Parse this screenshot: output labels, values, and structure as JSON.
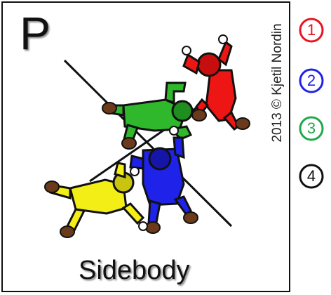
{
  "card": {
    "formation_letter": "P",
    "formation_name": "Sidebody",
    "credit": "2013 © Kjetil Nordin"
  },
  "legend": [
    {
      "number": "1",
      "color": "#e8141f"
    },
    {
      "number": "2",
      "color": "#1f22e8"
    },
    {
      "number": "3",
      "color": "#20a84a"
    },
    {
      "number": "4",
      "color": "#111111"
    }
  ],
  "jumpers": [
    {
      "slot": "1",
      "suit_color": "#ee1515",
      "body_icon": "red-jumper-icon"
    },
    {
      "slot": "2",
      "suit_color": "#1f22e8",
      "body_icon": "blue-jumper-icon"
    },
    {
      "slot": "3",
      "suit_color": "#2fb82c",
      "body_icon": "green-jumper-icon"
    },
    {
      "slot": "4",
      "suit_color": "#f2ee16",
      "body_icon": "yellow-jumper-icon"
    }
  ],
  "colors": {
    "outline": "#111111",
    "shadow": "#8a8a8a",
    "boot": "#6b3a1a",
    "glove": "#ffffff"
  }
}
